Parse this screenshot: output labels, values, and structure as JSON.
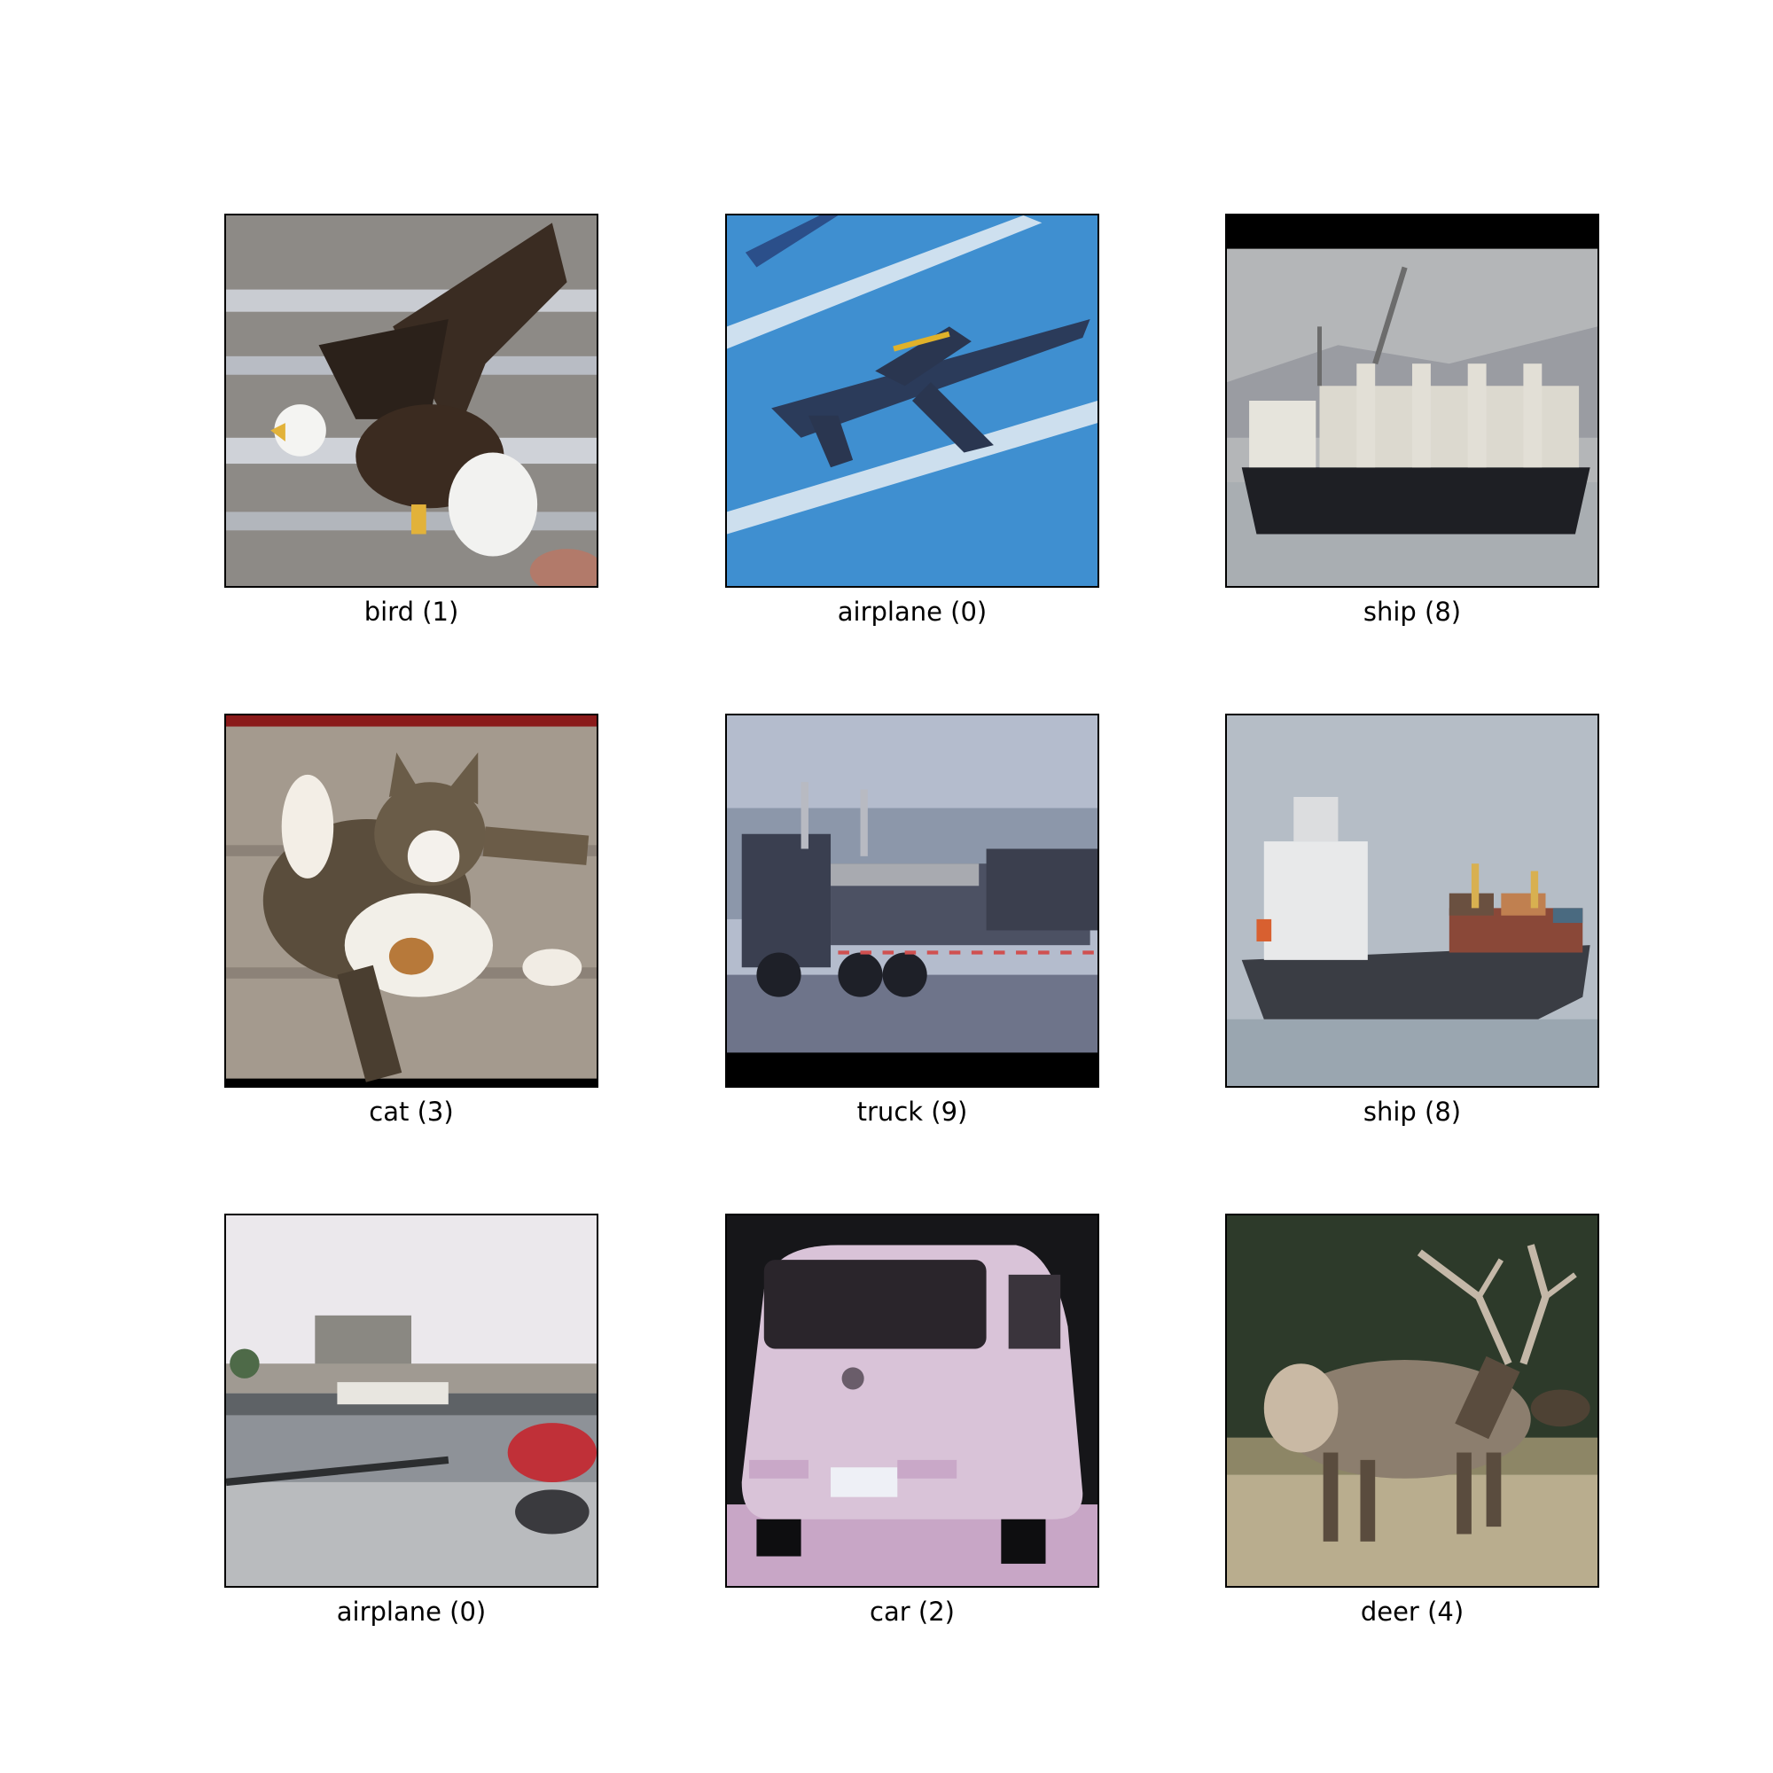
{
  "tiles": [
    {
      "label": "bird (1)",
      "subject": "eagle-photo"
    },
    {
      "label": "airplane (0)",
      "subject": "jet-photo"
    },
    {
      "label": "ship (8)",
      "subject": "cargo-ship-photo"
    },
    {
      "label": "cat (3)",
      "subject": "cat-photo"
    },
    {
      "label": "truck (9)",
      "subject": "truck-photo"
    },
    {
      "label": "ship (8)",
      "subject": "container-ship-photo"
    },
    {
      "label": "airplane (0)",
      "subject": "seaplane-harbor-photo"
    },
    {
      "label": "car (2)",
      "subject": "car-photo"
    },
    {
      "label": "deer (4)",
      "subject": "elk-photo"
    }
  ]
}
